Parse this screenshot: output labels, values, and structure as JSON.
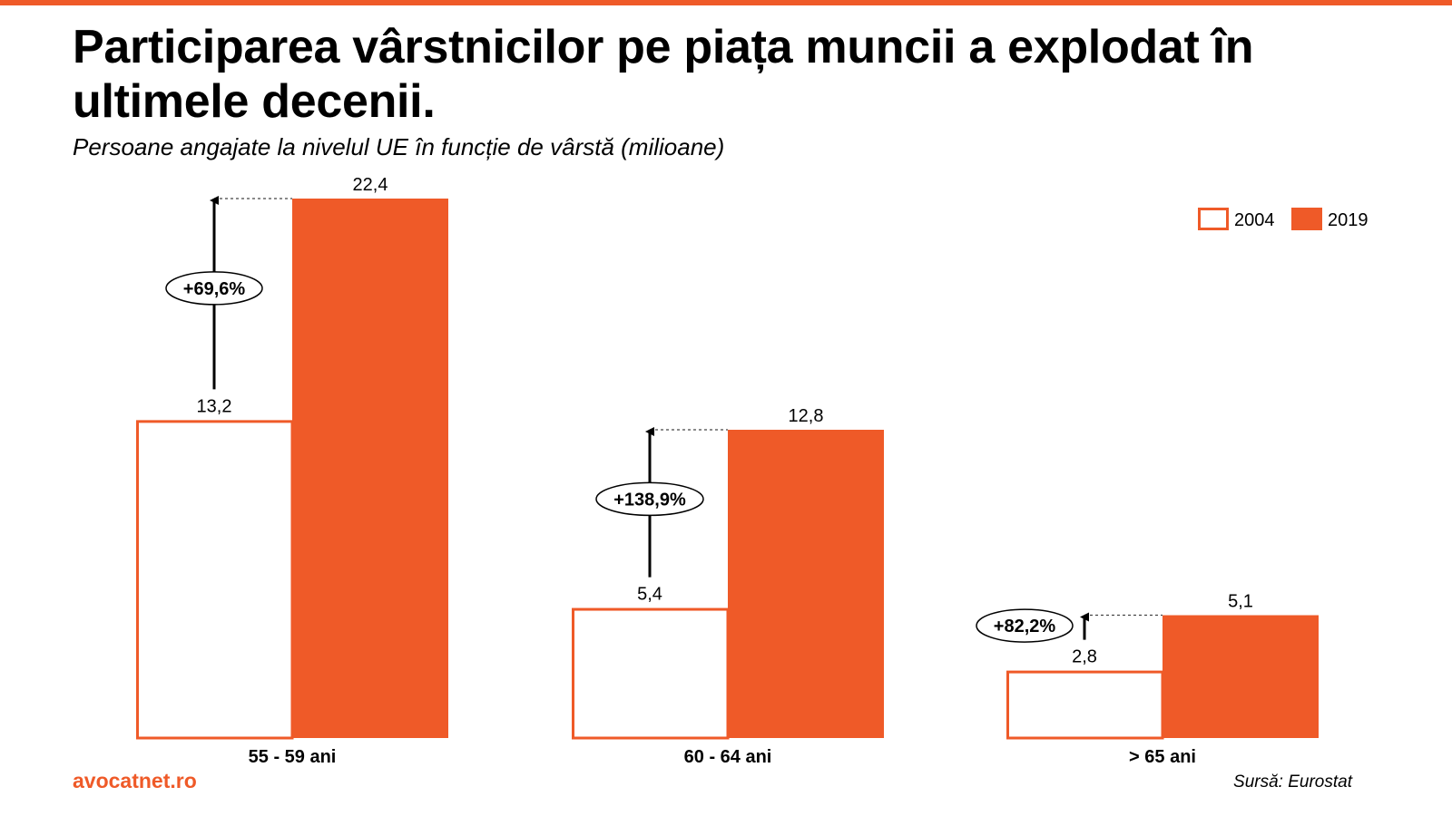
{
  "header": {
    "title": "Participarea vârstnicilor pe piața muncii a explodat în ultimele decenii.",
    "subtitle": "Persoane angajate la nivelul UE în funcție de vârstă (milioane)"
  },
  "footer": {
    "site": "avocatnet.ro",
    "source": "Sursă: Eurostat"
  },
  "colors": {
    "accent": "#EF5A28",
    "outline_fill": "#FFFFFF"
  },
  "chart_data": {
    "type": "bar",
    "categories": [
      "55 - 59 ani",
      "60 - 64 ani",
      "> 65 ani"
    ],
    "series": [
      {
        "name": "2004",
        "values": [
          13.2,
          5.4,
          2.8
        ],
        "value_labels": [
          "13,2",
          "5,4",
          "2,8"
        ],
        "style": "outline"
      },
      {
        "name": "2019",
        "values": [
          22.4,
          12.8,
          5.1
        ],
        "value_labels": [
          "22,4",
          "12,8",
          "5,1"
        ],
        "style": "filled"
      }
    ],
    "annotations": [
      "+69,6%",
      "+138,9%",
      "+82,2%"
    ],
    "ylim": [
      0,
      22.4
    ],
    "grid": false,
    "legend": "top-right"
  }
}
